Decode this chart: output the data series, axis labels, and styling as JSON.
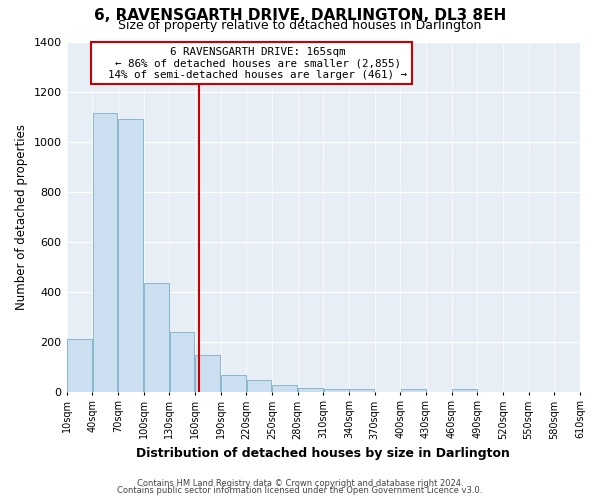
{
  "title": "6, RAVENSGARTH DRIVE, DARLINGTON, DL3 8EH",
  "subtitle": "Size of property relative to detached houses in Darlington",
  "xlabel": "Distribution of detached houses by size in Darlington",
  "ylabel": "Number of detached properties",
  "bar_color": "#ccdff0",
  "bar_edge_color": "#7aafc8",
  "plot_bg_color": "#e8eef6",
  "fig_bg_color": "#ffffff",
  "vline_x": 165,
  "vline_color": "#cc0000",
  "annotation_title": "6 RAVENSGARTH DRIVE: 165sqm",
  "annotation_line1": "← 86% of detached houses are smaller (2,855)",
  "annotation_line2": "14% of semi-detached houses are larger (461) →",
  "annotation_box_color": "#ffffff",
  "annotation_box_edge": "#cc0000",
  "bin_edges": [
    10,
    40,
    70,
    100,
    130,
    160,
    190,
    220,
    250,
    280,
    310,
    340,
    370,
    400,
    430,
    460,
    490,
    520,
    550,
    580,
    610
  ],
  "bar_heights": [
    210,
    1115,
    1090,
    435,
    240,
    145,
    65,
    45,
    25,
    15,
    10,
    10,
    0,
    10,
    0,
    10,
    0,
    0,
    0,
    0
  ],
  "ylim": [
    0,
    1400
  ],
  "yticks": [
    0,
    200,
    400,
    600,
    800,
    1000,
    1200,
    1400
  ],
  "footer1": "Contains HM Land Registry data © Crown copyright and database right 2024.",
  "footer2": "Contains public sector information licensed under the Open Government Licence v3.0."
}
